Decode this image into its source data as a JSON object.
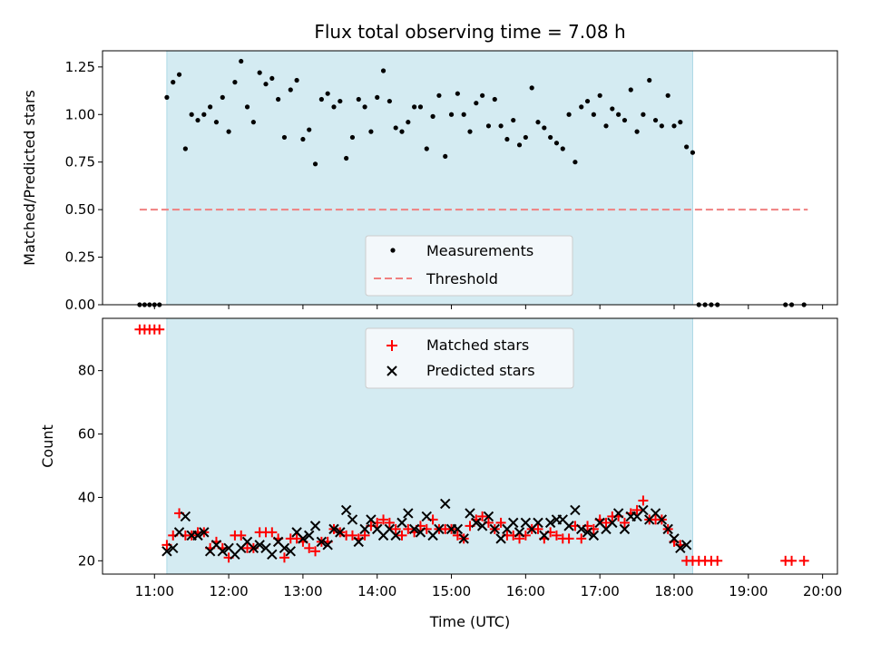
{
  "chart_data": [
    {
      "type": "scatter",
      "title": "Flux total observing time = 7.08 h",
      "xlabel": "",
      "ylabel": "Matched/Predicted stars",
      "xlim": [
        "10:18",
        "20:12"
      ],
      "ylim": [
        0,
        1.335
      ],
      "yticks": [
        0.0,
        0.25,
        0.5,
        0.75,
        1.0,
        1.25
      ],
      "ytick_labels": [
        "0.00",
        "0.25",
        "0.50",
        "0.75",
        "1.00",
        "1.25"
      ],
      "shaded_interval": [
        "11:10",
        "18:15"
      ],
      "shade_color": "#d4ebf2",
      "legend": {
        "position": "bottom-center",
        "entries": [
          "Measurements",
          "Threshold"
        ]
      },
      "threshold": {
        "name": "Threshold",
        "y": 0.5,
        "x_start": "10:48",
        "x_end": "19:48",
        "color": "#f08080",
        "style": "dashed"
      },
      "series": [
        {
          "name": "Measurements",
          "color": "#000000",
          "marker": "dot",
          "x": [
            "10:48",
            "10:52",
            "10:56",
            "11:00",
            "11:04",
            "11:10",
            "11:15",
            "11:20",
            "11:25",
            "11:30",
            "11:35",
            "11:40",
            "11:45",
            "11:50",
            "11:55",
            "12:00",
            "12:05",
            "12:10",
            "12:15",
            "12:20",
            "12:25",
            "12:30",
            "12:35",
            "12:40",
            "12:45",
            "12:50",
            "12:55",
            "13:00",
            "13:05",
            "13:10",
            "13:15",
            "13:20",
            "13:25",
            "13:30",
            "13:35",
            "13:40",
            "13:45",
            "13:50",
            "13:55",
            "14:00",
            "14:05",
            "14:10",
            "14:15",
            "14:20",
            "14:25",
            "14:30",
            "14:35",
            "14:40",
            "14:45",
            "14:50",
            "14:55",
            "15:00",
            "15:05",
            "15:10",
            "15:15",
            "15:20",
            "15:25",
            "15:30",
            "15:35",
            "15:40",
            "15:45",
            "15:50",
            "15:55",
            "16:00",
            "16:05",
            "16:10",
            "16:15",
            "16:20",
            "16:25",
            "16:30",
            "16:35",
            "16:40",
            "16:45",
            "16:50",
            "16:55",
            "17:00",
            "17:05",
            "17:10",
            "17:15",
            "17:20",
            "17:25",
            "17:30",
            "17:35",
            "17:40",
            "17:45",
            "17:50",
            "17:55",
            "18:00",
            "18:05",
            "18:10",
            "18:15",
            "18:20",
            "18:25",
            "18:30",
            "18:35",
            "19:30",
            "19:35",
            "19:45"
          ],
          "y": [
            0,
            0,
            0,
            0,
            0,
            1.09,
            1.17,
            1.21,
            0.82,
            1.0,
            0.97,
            1.0,
            1.04,
            0.96,
            1.09,
            0.91,
            1.17,
            1.28,
            1.04,
            0.96,
            1.22,
            1.16,
            1.19,
            1.08,
            0.88,
            1.13,
            1.18,
            0.87,
            0.92,
            0.74,
            1.08,
            1.11,
            1.04,
            1.07,
            0.77,
            0.88,
            1.08,
            1.04,
            0.91,
            1.09,
            1.23,
            1.07,
            0.93,
            0.91,
            0.96,
            1.04,
            1.04,
            0.82,
            0.99,
            1.1,
            0.78,
            1.0,
            1.11,
            1.0,
            0.91,
            1.06,
            1.1,
            0.94,
            1.08,
            0.94,
            0.87,
            0.97,
            0.84,
            0.88,
            1.14,
            0.96,
            0.93,
            0.88,
            0.85,
            0.82,
            1.0,
            0.75,
            1.04,
            1.07,
            1.0,
            1.1,
            0.94,
            1.03,
            1.0,
            0.97,
            1.13,
            0.91,
            1.0,
            1.18,
            0.97,
            0.94,
            1.1,
            0.94,
            0.96,
            0.83,
            0.8,
            0,
            0,
            0,
            0,
            0,
            0,
            0
          ]
        }
      ]
    },
    {
      "type": "scatter",
      "title": "",
      "xlabel": "Time (UTC)",
      "ylabel": "Count",
      "xlim": [
        "10:18",
        "20:12"
      ],
      "ylim": [
        15.8,
        96.5
      ],
      "yticks": [
        20,
        40,
        60,
        80
      ],
      "ytick_labels": [
        "20",
        "40",
        "60",
        "80"
      ],
      "xticks": [
        "11:00",
        "12:00",
        "13:00",
        "14:00",
        "15:00",
        "16:00",
        "17:00",
        "18:00",
        "19:00",
        "20:00"
      ],
      "xtick_labels": [
        "11:00",
        "12:00",
        "13:00",
        "14:00",
        "15:00",
        "16:00",
        "17:00",
        "18:00",
        "19:00",
        "20:00"
      ],
      "shaded_interval": [
        "11:10",
        "18:15"
      ],
      "shade_color": "#d4ebf2",
      "legend": {
        "position": "top-center",
        "entries": [
          "Matched stars",
          "Predicted stars"
        ]
      },
      "series": [
        {
          "name": "Matched stars",
          "color": "#ff0000",
          "marker": "plus",
          "x": [
            "10:48",
            "10:52",
            "10:56",
            "11:00",
            "11:04",
            "11:10",
            "11:15",
            "11:20",
            "11:25",
            "11:30",
            "11:35",
            "11:40",
            "11:45",
            "11:50",
            "11:55",
            "12:00",
            "12:05",
            "12:10",
            "12:15",
            "12:20",
            "12:25",
            "12:30",
            "12:35",
            "12:40",
            "12:45",
            "12:50",
            "12:55",
            "13:00",
            "13:05",
            "13:10",
            "13:15",
            "13:20",
            "13:25",
            "13:30",
            "13:35",
            "13:40",
            "13:45",
            "13:50",
            "13:55",
            "14:00",
            "14:05",
            "14:10",
            "14:15",
            "14:20",
            "14:25",
            "14:30",
            "14:35",
            "14:40",
            "14:45",
            "14:50",
            "14:55",
            "15:00",
            "15:05",
            "15:10",
            "15:15",
            "15:20",
            "15:25",
            "15:30",
            "15:35",
            "15:40",
            "15:45",
            "15:50",
            "15:55",
            "16:00",
            "16:05",
            "16:10",
            "16:15",
            "16:20",
            "16:25",
            "16:30",
            "16:35",
            "16:40",
            "16:45",
            "16:50",
            "16:55",
            "17:00",
            "17:05",
            "17:10",
            "17:15",
            "17:20",
            "17:25",
            "17:30",
            "17:35",
            "17:40",
            "17:45",
            "17:50",
            "17:55",
            "18:00",
            "18:05",
            "18:10",
            "18:15",
            "18:20",
            "18:25",
            "18:30",
            "18:35",
            "19:30",
            "19:35",
            "19:45"
          ],
          "y": [
            93,
            93,
            93,
            93,
            93,
            25,
            28,
            35,
            28,
            28,
            29,
            29,
            24,
            26,
            24,
            21,
            28,
            28,
            24,
            24,
            29,
            29,
            29,
            27,
            21,
            27,
            27,
            26,
            24,
            23,
            26,
            26,
            30,
            29,
            28,
            28,
            27,
            28,
            31,
            32,
            33,
            32,
            30,
            28,
            30,
            29,
            31,
            30,
            33,
            30,
            30,
            30,
            28,
            27,
            31,
            33,
            34,
            32,
            30,
            32,
            28,
            28,
            27,
            28,
            30,
            30,
            27,
            29,
            28,
            27,
            27,
            31,
            27,
            31,
            30,
            33,
            32,
            34,
            34,
            32,
            35,
            36,
            39,
            33,
            33,
            33,
            30,
            26,
            25,
            20,
            20,
            20,
            20,
            20,
            20,
            20,
            20,
            20
          ]
        },
        {
          "name": "Predicted stars",
          "color": "#000000",
          "marker": "x",
          "x": [
            "11:10",
            "11:15",
            "11:20",
            "11:25",
            "11:30",
            "11:35",
            "11:40",
            "11:45",
            "11:50",
            "11:55",
            "12:00",
            "12:05",
            "12:10",
            "12:15",
            "12:20",
            "12:25",
            "12:30",
            "12:35",
            "12:40",
            "12:45",
            "12:50",
            "12:55",
            "13:00",
            "13:05",
            "13:10",
            "13:15",
            "13:20",
            "13:25",
            "13:30",
            "13:35",
            "13:40",
            "13:45",
            "13:50",
            "13:55",
            "14:00",
            "14:05",
            "14:10",
            "14:15",
            "14:20",
            "14:25",
            "14:30",
            "14:35",
            "14:40",
            "14:45",
            "14:50",
            "14:55",
            "15:00",
            "15:05",
            "15:10",
            "15:15",
            "15:20",
            "15:25",
            "15:30",
            "15:35",
            "15:40",
            "15:45",
            "15:50",
            "15:55",
            "16:00",
            "16:05",
            "16:10",
            "16:15",
            "16:20",
            "16:25",
            "16:30",
            "16:35",
            "16:40",
            "16:45",
            "16:50",
            "16:55",
            "17:00",
            "17:05",
            "17:10",
            "17:15",
            "17:20",
            "17:25",
            "17:30",
            "17:35",
            "17:40",
            "17:45",
            "17:50",
            "17:55",
            "18:00",
            "18:05",
            "18:10"
          ],
          "y": [
            23,
            24,
            29,
            34,
            28,
            28,
            29,
            23,
            25,
            23,
            24,
            22,
            24,
            26,
            24,
            25,
            24,
            22,
            26,
            24,
            23,
            29,
            27,
            28,
            31,
            26,
            25,
            30,
            29,
            36,
            33,
            26,
            30,
            33,
            30,
            28,
            30,
            28,
            32,
            35,
            30,
            29,
            34,
            28,
            30,
            38,
            30,
            30,
            27,
            35,
            32,
            31,
            34,
            30,
            27,
            30,
            32,
            29,
            32,
            30,
            32,
            28,
            32,
            33,
            33,
            31,
            36,
            30,
            29,
            28,
            32,
            30,
            32,
            35,
            30,
            34,
            34,
            36,
            33,
            35,
            33,
            30,
            27,
            24,
            25
          ]
        }
      ]
    }
  ]
}
